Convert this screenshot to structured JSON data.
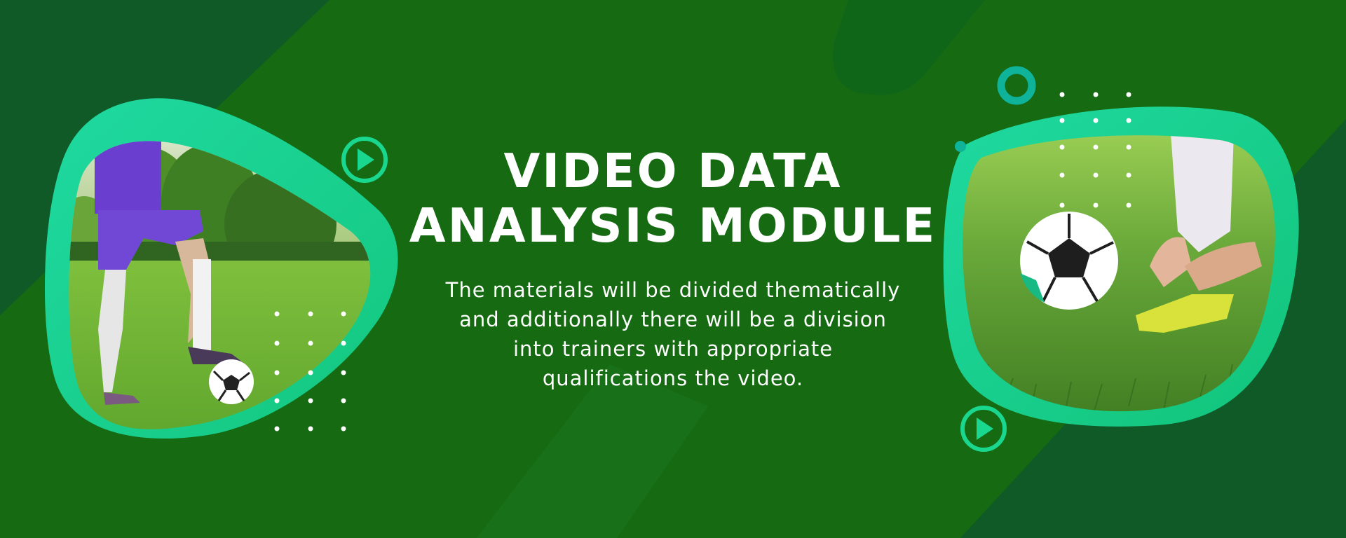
{
  "heading": {
    "line1": "VIDEO DATA",
    "line2": "ANALYSIS MODULE"
  },
  "description": {
    "line1": "The materials will be divided thematically",
    "line2": "and additionally there will be a division",
    "line3": "into trainers with appropriate",
    "line4": "qualifications the video."
  },
  "colors": {
    "background": "#156a12",
    "background_shade": "#0f5a27",
    "accent": "#19d78e",
    "accent_light": "#22e3a4",
    "teal": "#0fb39a",
    "text": "#ffffff"
  },
  "icons": {
    "play_left": "play-circle-icon",
    "play_right": "play-circle-icon",
    "ring": "ring-icon"
  }
}
